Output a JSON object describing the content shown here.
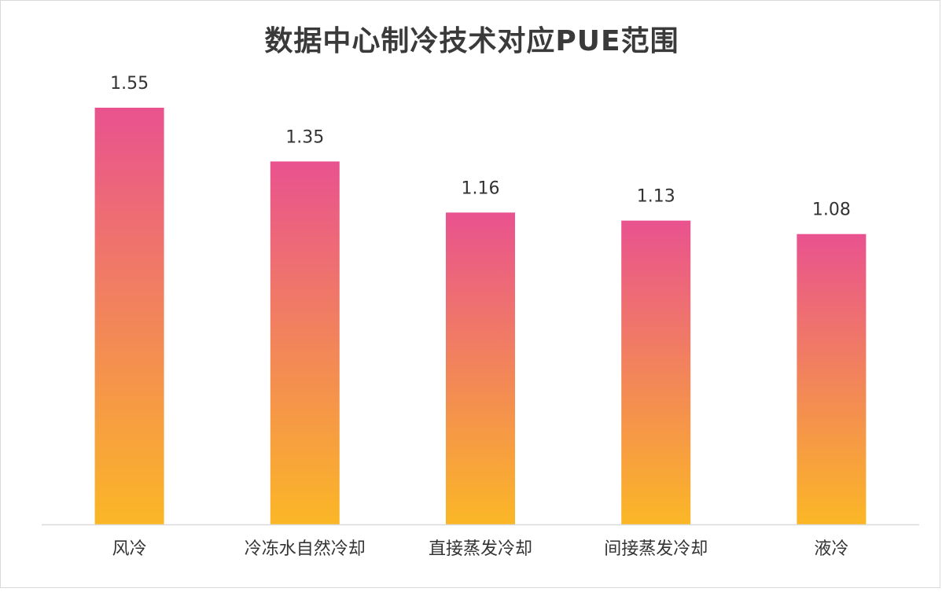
{
  "chart_data": {
    "type": "bar",
    "title": "数据中心制冷技术对应PUE范围",
    "categories": [
      "风冷",
      "冷冻水自然冷却",
      "直接蒸发冷却",
      "间接蒸发冷却",
      "液冷"
    ],
    "values": [
      1.55,
      1.35,
      1.16,
      1.13,
      1.08
    ],
    "value_labels": [
      "1.55",
      "1.35",
      "1.16",
      "1.13",
      "1.08"
    ],
    "xlabel": "",
    "ylabel": "",
    "ylim": [
      0.0,
      1.55
    ],
    "grid": false,
    "legend": "none",
    "colors": {
      "bar_top": "#e9528f",
      "bar_bottom": "#fbb726",
      "axis": "#d9d9d9",
      "text": "#333333"
    }
  }
}
